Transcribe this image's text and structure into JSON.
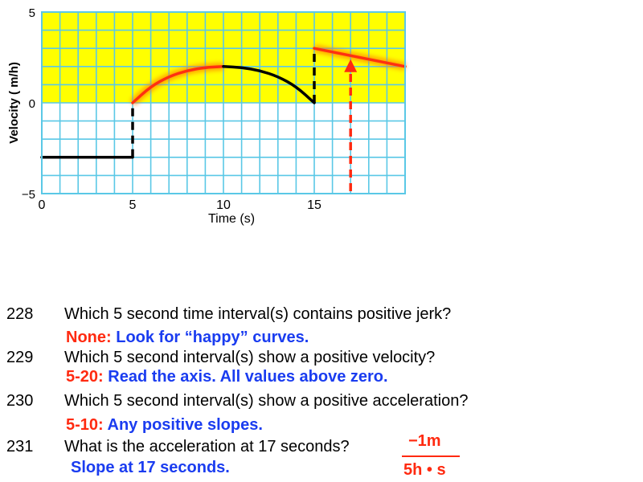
{
  "chart_data": {
    "type": "line",
    "xlabel": "Time (s)",
    "ylabel": "Velocity ( m/h)",
    "xlim": [
      0,
      20
    ],
    "ylim": [
      -5,
      5
    ],
    "x_ticks": [
      "0",
      "5",
      "10",
      "15"
    ],
    "y_ticks": [
      "5",
      "0",
      "−5"
    ],
    "grid": true,
    "positive_region_color": "#ffff00",
    "grid_color": "#5ac8e6",
    "series": [
      {
        "segment": "constant",
        "x": [
          0,
          5
        ],
        "y": [
          -3,
          -3
        ],
        "color": "#000000"
      },
      {
        "segment": "rising-arc",
        "x": [
          5,
          6,
          7,
          8,
          9,
          10
        ],
        "y": [
          0,
          0.9,
          1.45,
          1.78,
          1.95,
          2.0
        ],
        "color": "#ff3010",
        "highlighted": true
      },
      {
        "segment": "falling-arc",
        "x": [
          10,
          11,
          12,
          13,
          14,
          15
        ],
        "y": [
          2.0,
          1.95,
          1.78,
          1.45,
          0.9,
          0
        ],
        "color": "#000000"
      },
      {
        "segment": "linear-decrease",
        "x": [
          15,
          20
        ],
        "y": [
          3,
          2
        ],
        "color": "#ff3010",
        "highlighted": true
      }
    ],
    "discontinuities": [
      {
        "x": 5,
        "y": [
          -3,
          0
        ]
      },
      {
        "x": 15,
        "y": [
          0,
          3
        ]
      }
    ],
    "annotation_arrow": {
      "x": 17,
      "y_from": -5,
      "y_to": 2.4,
      "color": "#ff2a10"
    }
  },
  "questions": [
    {
      "num": "228",
      "text": "Which 5 second time interval(s) contains positive jerk?",
      "answer_red": "None:",
      "answer_blue": " Look for “happy” curves."
    },
    {
      "num": "229",
      "text": "Which 5 second interval(s) show a positive velocity?",
      "answer_red": "5-20:",
      "answer_blue": " Read the axis. All values above zero."
    },
    {
      "num": "230",
      "text": "Which 5 second interval(s) show a positive acceleration?",
      "answer_red": "5-10:",
      "answer_blue": " Any positive slopes."
    },
    {
      "num": "231",
      "text": "What is the acceleration at 17 seconds?",
      "answer_red": "",
      "answer_blue": "Slope at 17 seconds."
    }
  ],
  "fraction": {
    "numerator": "−1m",
    "denominator": "5h • s"
  }
}
